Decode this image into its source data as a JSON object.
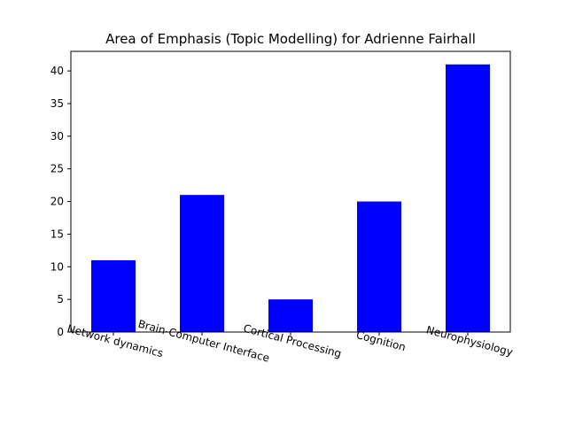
{
  "chart_data": {
    "type": "bar",
    "title": "Area of Emphasis (Topic Modelling) for Adrienne Fairhall",
    "categories": [
      "Network dynamics",
      "Brain-Computer Interface",
      "Cortical Processing",
      "Cognition",
      "Neurophysiology"
    ],
    "values": [
      11,
      21,
      5,
      20,
      41
    ],
    "xlabel": "",
    "ylabel": "",
    "ylim": [
      0,
      43
    ],
    "yticks": [
      0,
      5,
      10,
      15,
      20,
      25,
      30,
      35,
      40
    ],
    "bar_color": "#0000ff",
    "grid": false,
    "legend": "none"
  }
}
